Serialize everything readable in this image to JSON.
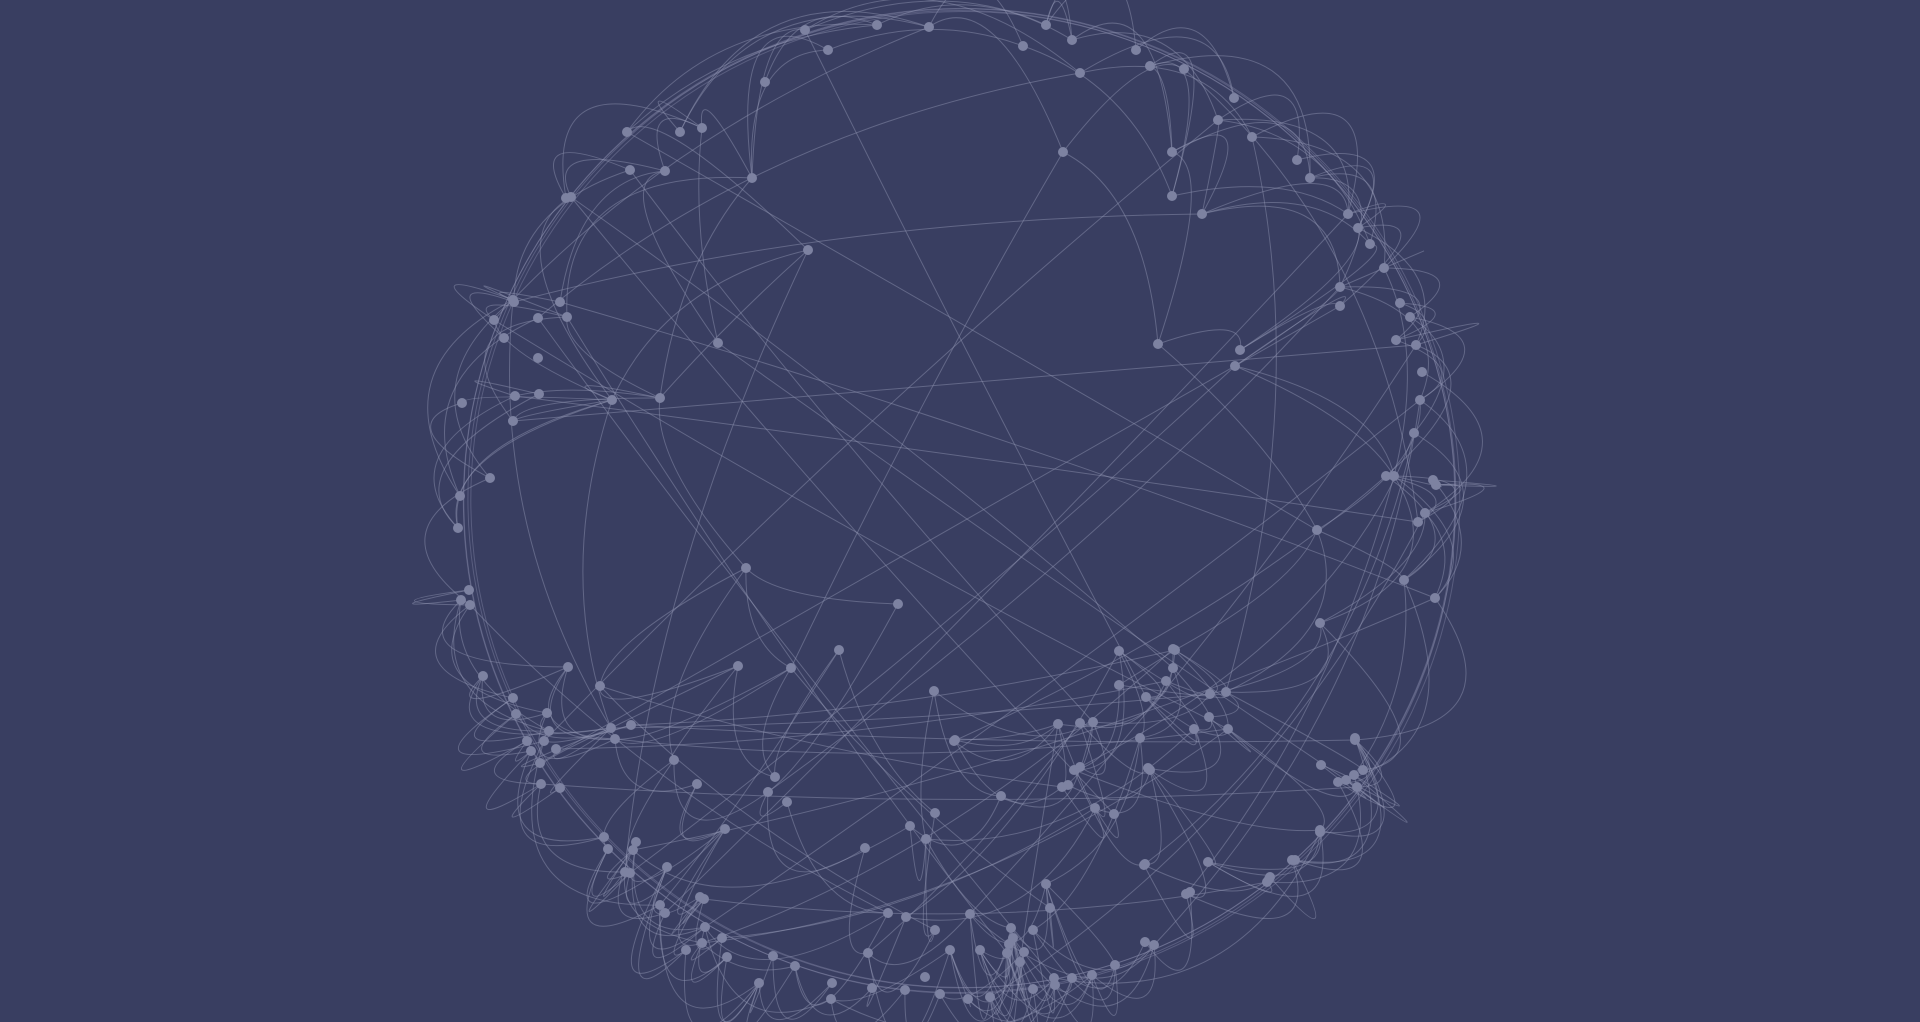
{
  "graph": {
    "colors": {
      "background": "#393e61",
      "edge": "#9499b6",
      "node": "#7d82a1"
    },
    "layout_style": "circular",
    "edges_style": "curved"
  }
}
